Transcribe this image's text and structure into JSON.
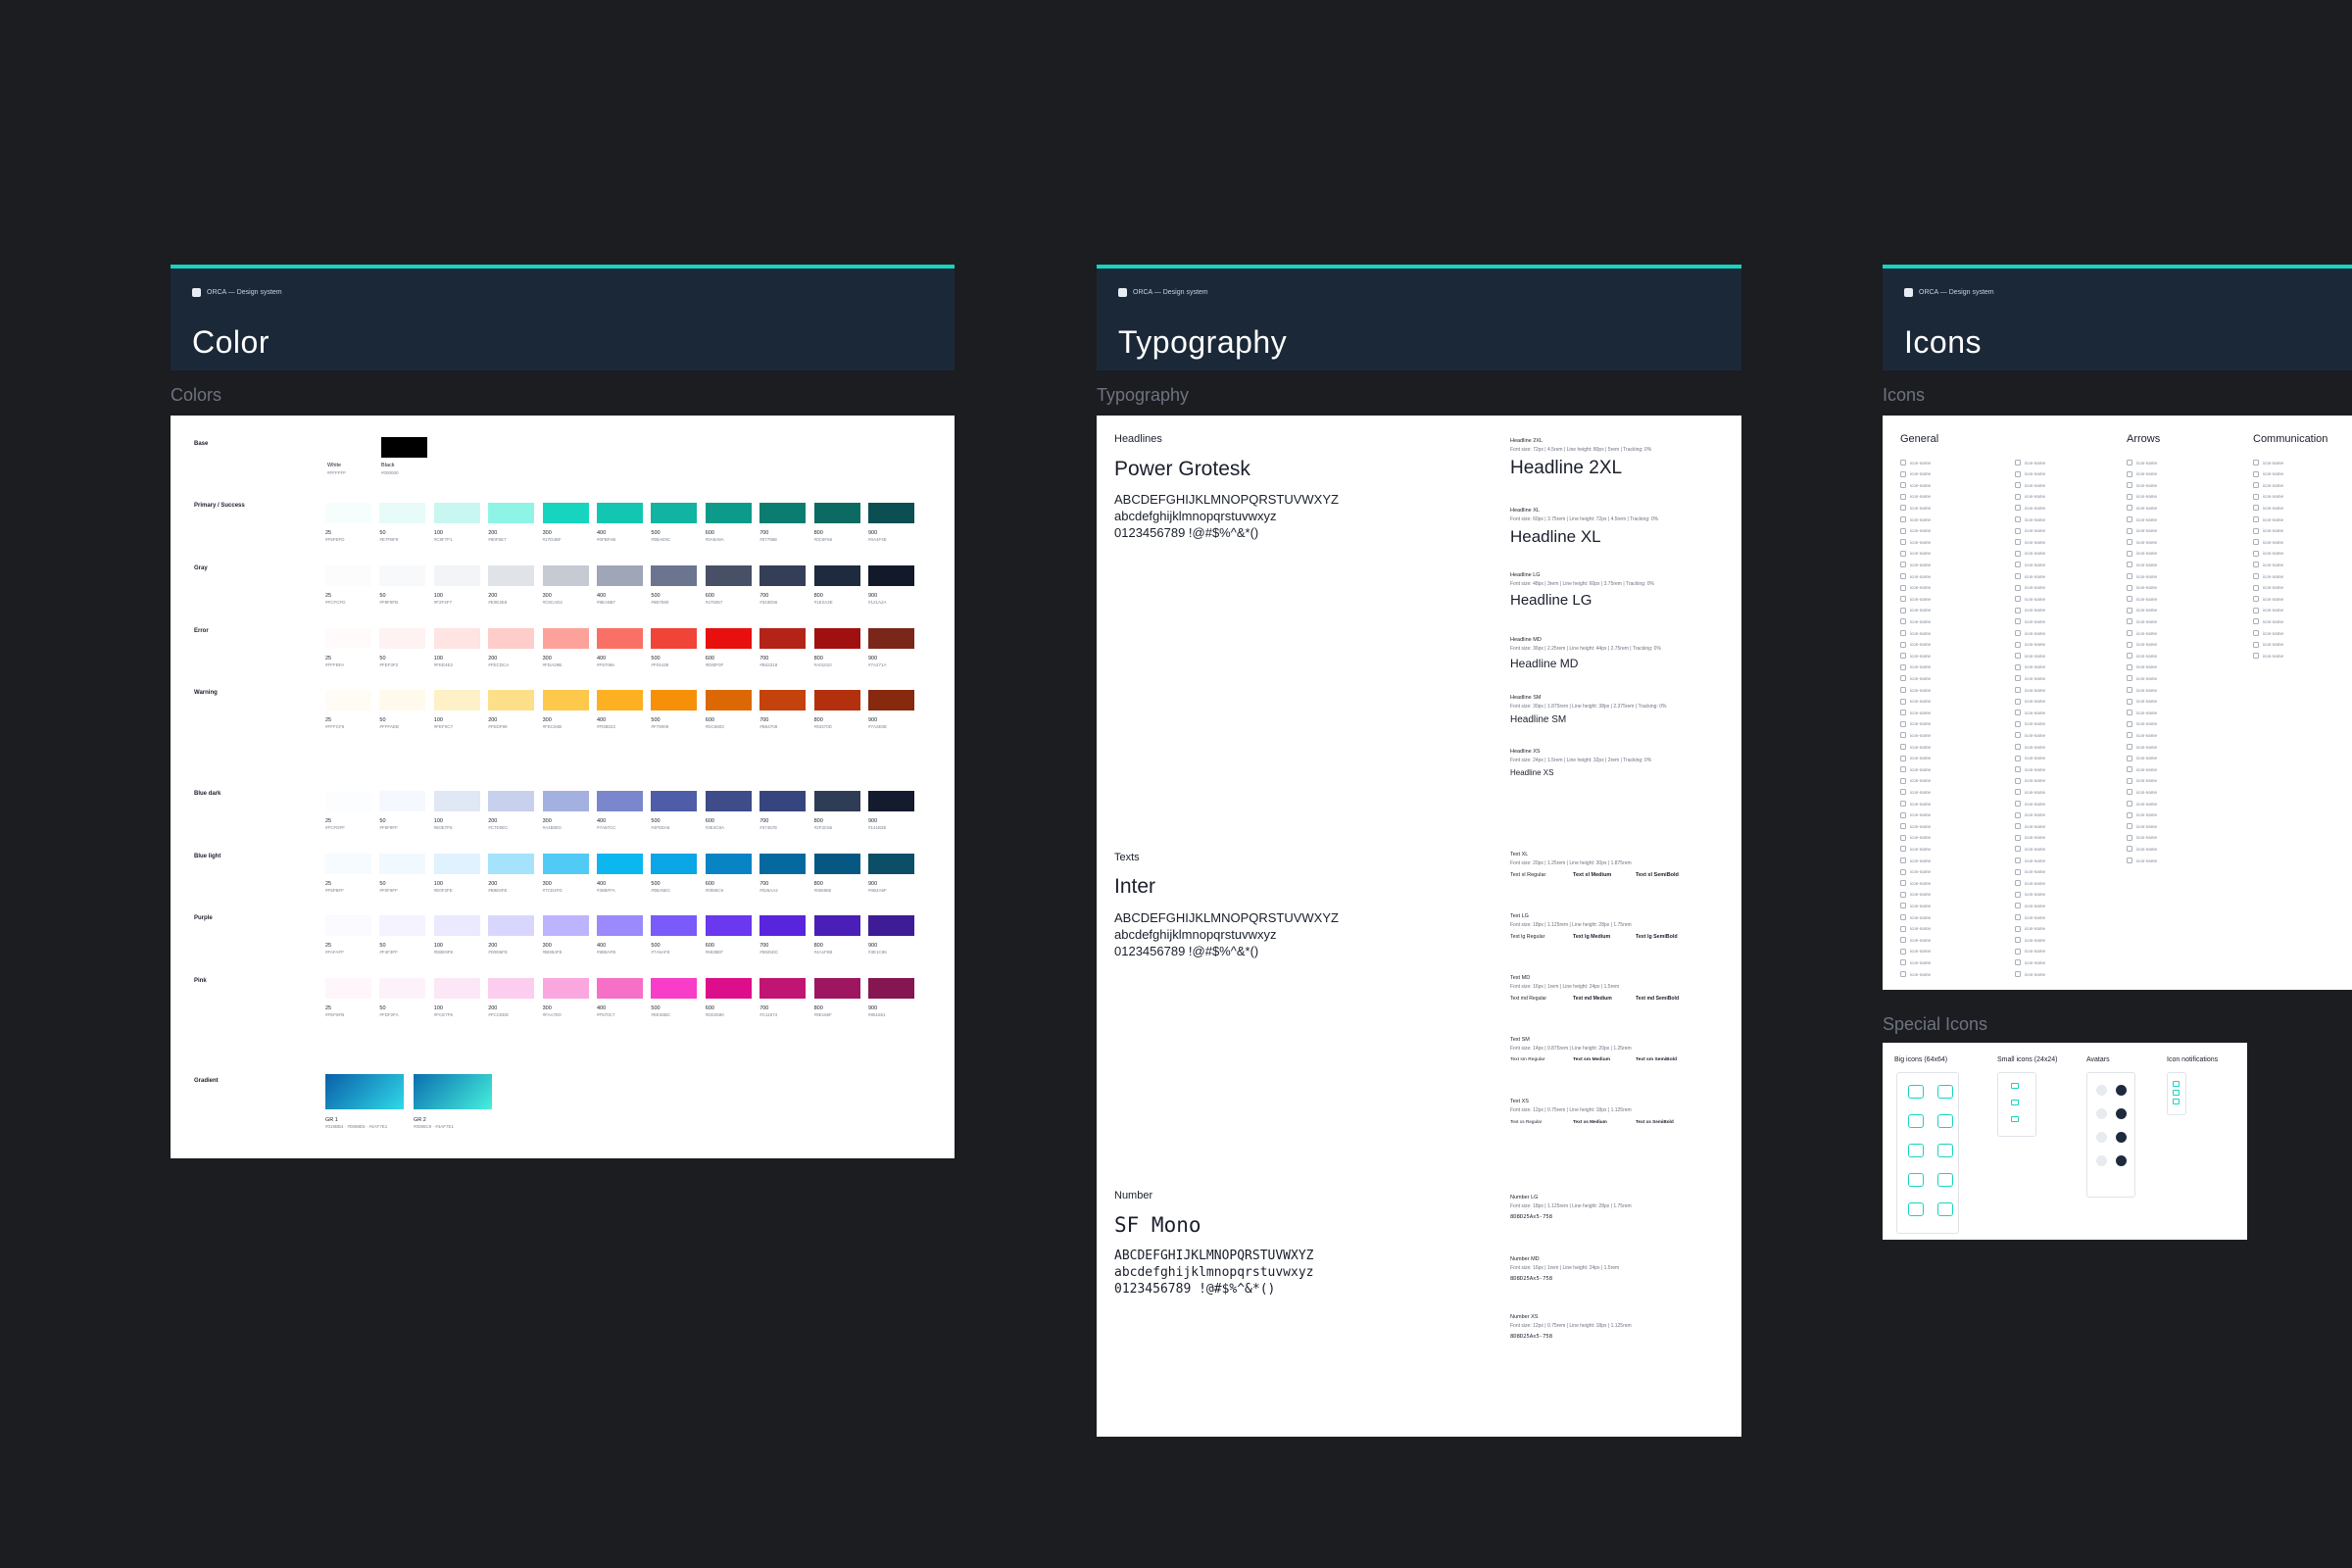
{
  "brand": "ORCA — Design system",
  "frames": {
    "color": {
      "title": "Color",
      "section_label": "Colors"
    },
    "typography": {
      "title": "Typography",
      "section_label": "Typography"
    },
    "icons": {
      "title": "Icons",
      "section_label": "Icons"
    },
    "special": {
      "section_label": "Special Icons"
    }
  },
  "base": {
    "name": "Base",
    "swatches": [
      {
        "label": "White",
        "hex": "#FFFFFF",
        "color": "#ffffff"
      },
      {
        "label": "Black",
        "hex": "#000000",
        "color": "#000000"
      }
    ]
  },
  "palettes": [
    {
      "name": "Primary / Success",
      "steps": [
        "25",
        "50",
        "100",
        "200",
        "300",
        "400",
        "500",
        "600",
        "700",
        "800",
        "900"
      ],
      "hexes": [
        "#F5FEFD",
        "#E7FBF9",
        "#C8F7F1",
        "#90F5E7",
        "#17D4BF",
        "#0FBFAB",
        "#0BAE9C",
        "#0A9A8A",
        "#07796E",
        "#0C6F66",
        "#0A4F4E"
      ],
      "colors": [
        "#f5fefd",
        "#e7fbf9",
        "#c8f7f1",
        "#8ef5e6",
        "#17d4bf",
        "#13c6b1",
        "#10b4a1",
        "#0c9b8a",
        "#0a7d70",
        "#0b6b63",
        "#0c4f52"
      ]
    },
    {
      "name": "Gray",
      "steps": [
        "25",
        "50",
        "100",
        "200",
        "300",
        "400",
        "500",
        "600",
        "700",
        "800",
        "900"
      ],
      "hexes": [
        "#FCFCFD",
        "#F8F9FB",
        "#F2F4F7",
        "#E0E3E8",
        "#C6CAD2",
        "#9EA6B7",
        "#6B7590",
        "#475067",
        "#343E56",
        "#1E2A3E",
        "#121A2A"
      ],
      "colors": [
        "#fcfcfd",
        "#f8f9fb",
        "#f2f4f7",
        "#e0e3e8",
        "#c6cad2",
        "#9ea6b7",
        "#6b7590",
        "#475067",
        "#343e56",
        "#1e2a3e",
        "#121a2a"
      ]
    },
    {
      "name": "Error",
      "steps": [
        "25",
        "50",
        "100",
        "200",
        "300",
        "400",
        "500",
        "600",
        "700",
        "800",
        "900"
      ],
      "hexes": [
        "#FFFBFA",
        "#FEF3F2",
        "#FEE4E2",
        "#FECDCA",
        "#FDA29B",
        "#F97066",
        "#F04438",
        "#E80F0F",
        "#B42318",
        "#A01010",
        "#7A271A"
      ],
      "colors": [
        "#fffbfa",
        "#fef3f2",
        "#fee4e2",
        "#fecdca",
        "#fda29b",
        "#f97066",
        "#f04438",
        "#e80f0f",
        "#b42318",
        "#a01010",
        "#7a271a"
      ]
    },
    {
      "name": "Warning",
      "steps": [
        "25",
        "50",
        "100",
        "200",
        "300",
        "400",
        "500",
        "600",
        "700",
        "800",
        "900"
      ],
      "hexes": [
        "#FFFCF5",
        "#FFFAEB",
        "#FEF0C7",
        "#FEDF89",
        "#FEC84B",
        "#FDB022",
        "#F79009",
        "#DC6803",
        "#B54708",
        "#93370D",
        "#7A2E0E"
      ],
      "colors": [
        "#fffcf5",
        "#fffaeb",
        "#fef0c7",
        "#fedf89",
        "#fec84b",
        "#fdb022",
        "#f79009",
        "#dc6803",
        "#c4420c",
        "#b3300e",
        "#86290f"
      ]
    },
    {
      "name": "Blue dark",
      "steps": [
        "25",
        "50",
        "100",
        "200",
        "300",
        "400",
        "500",
        "600",
        "700",
        "800",
        "900"
      ],
      "hexes": [
        "#FCFDFF",
        "#F5F8FF",
        "#E0E7F5",
        "#C7D0EC",
        "#A4B0E0",
        "#7A87CC",
        "#4F5DA8",
        "#3E4C8A",
        "#37457E",
        "#2F3C56",
        "#141B2E"
      ],
      "colors": [
        "#fcfdff",
        "#f5f8ff",
        "#e0e7f5",
        "#c7d0ec",
        "#a4b0e0",
        "#7a87cc",
        "#4f5da8",
        "#3e4c8a",
        "#37457e",
        "#2f3c56",
        "#141b2e"
      ]
    },
    {
      "name": "Blue light",
      "steps": [
        "25",
        "50",
        "100",
        "200",
        "300",
        "400",
        "500",
        "600",
        "700",
        "800",
        "900"
      ],
      "hexes": [
        "#F5FBFF",
        "#F0F9FF",
        "#E0F2FE",
        "#B9E6FE",
        "#7CD4FD",
        "#36BFFA",
        "#0BA5EC",
        "#0086C9",
        "#026AA2",
        "#065986",
        "#0B4A6F"
      ],
      "colors": [
        "#f5fbff",
        "#f0f9ff",
        "#e0f2fe",
        "#a5e2fc",
        "#51cbf6",
        "#0bb7ee",
        "#0aa6e5",
        "#0884c4",
        "#0569a0",
        "#065883",
        "#0b4e66"
      ]
    },
    {
      "name": "Purple",
      "steps": [
        "25",
        "50",
        "100",
        "200",
        "300",
        "400",
        "500",
        "600",
        "700",
        "800",
        "900"
      ],
      "hexes": [
        "#FAFAFF",
        "#F4F3FF",
        "#EBE9FE",
        "#D9D6FE",
        "#BDB4FE",
        "#9B8AFB",
        "#7A5AF8",
        "#6938EF",
        "#5925DC",
        "#4A1FB8",
        "#3E1C96"
      ],
      "colors": [
        "#fafaff",
        "#f4f3ff",
        "#ebe9fe",
        "#d9d6fe",
        "#bdb4fe",
        "#9b8afb",
        "#7a5af8",
        "#6938ef",
        "#5925dc",
        "#4a1fb8",
        "#3e1c96"
      ]
    },
    {
      "name": "Pink",
      "steps": [
        "25",
        "50",
        "100",
        "200",
        "300",
        "400",
        "500",
        "600",
        "700",
        "800",
        "900"
      ],
      "hexes": [
        "#FEF6FB",
        "#FDF2FA",
        "#FCE7F6",
        "#FCCEEE",
        "#FAA7E0",
        "#F670C7",
        "#EE46BC",
        "#DD2590",
        "#C11574",
        "#9E165F",
        "#851651"
      ],
      "colors": [
        "#fef6fb",
        "#fdf2fa",
        "#fce7f6",
        "#fccdee",
        "#faa7e0",
        "#f670c7",
        "#f83dc8",
        "#dd0e8c",
        "#c11574",
        "#9e165f",
        "#851651"
      ]
    }
  ],
  "gradient": {
    "name": "Gradient",
    "items": [
      {
        "label": "GR 1",
        "hexes": "#019BB4 · #0088E5 · #4AF7E1",
        "from": "#0a5fa8",
        "to": "#2fd9e8"
      },
      {
        "label": "GR 2",
        "hexes": "#0086C9 · #4AF7E1",
        "from": "#0a6fb0",
        "to": "#46f0dc"
      }
    ]
  },
  "typography": {
    "headlines_label": "Headlines",
    "headlines_font": "Power Grotesk",
    "texts_label": "Texts",
    "texts_font": "Inter",
    "number_label": "Number",
    "number_font": "SF Mono",
    "glyph_upper": "ABCDEFGHIJKLMNOPQRSTUVWXYZ",
    "glyph_lower": "abcdefghijklmnopqrstuvwxyz",
    "glyph_nums": "0123456789 !@#$%^&*()",
    "headline_specs": [
      {
        "name": "Headline 2XL",
        "meta": "Font size: 72px | 4.5rem | Line height: 80px | 5rem | Tracking: 0%",
        "sample": "Headline 2XL"
      },
      {
        "name": "Headline XL",
        "meta": "Font size: 60px | 3.75rem | Line height: 72px | 4.5rem | Tracking: 0%",
        "sample": "Headline XL"
      },
      {
        "name": "Headline LG",
        "meta": "Font size: 48px | 3rem | Line height: 60px | 3.75rem | Tracking: 0%",
        "sample": "Headline LG"
      },
      {
        "name": "Headline MD",
        "meta": "Font size: 36px | 2.25rem | Line height: 44px | 2.75rem | Tracking: 0%",
        "sample": "Headline MD"
      },
      {
        "name": "Headline SM",
        "meta": "Font size: 30px | 1.875rem | Line height: 38px | 2.375rem | Tracking: 0%",
        "sample": "Headline SM"
      },
      {
        "name": "Headline XS",
        "meta": "Font size: 24px | 1.5rem | Line height: 32px | 2rem | Tracking: 0%",
        "sample": "Headline XS"
      }
    ],
    "text_specs": [
      {
        "name": "Text XL",
        "meta": "Font size: 20px | 1.25rem | Line height: 30px | 1.875rem",
        "samples": [
          "Text xl Regular",
          "Text xl Medium",
          "Text xl SemiBold"
        ]
      },
      {
        "name": "Text LG",
        "meta": "Font size: 18px | 1.125rem | Line height: 28px | 1.75rem",
        "samples": [
          "Text lg Regular",
          "Text lg Medium",
          "Text lg SemiBold"
        ]
      },
      {
        "name": "Text MD",
        "meta": "Font size: 16px | 1rem | Line height: 24px | 1.5rem",
        "samples": [
          "Text md Regular",
          "Text md Medium",
          "Text md SemiBold"
        ]
      },
      {
        "name": "Text SM",
        "meta": "Font size: 14px | 0.875rem | Line height: 20px | 1.25rem",
        "samples": [
          "Text sm Regular",
          "Text sm Medium",
          "Text sm SemiBold"
        ]
      },
      {
        "name": "Text XS",
        "meta": "Font size: 12px | 0.75rem | Line height: 18px | 1.125rem",
        "samples": [
          "Text xs Regular",
          "Text xs Medium",
          "Text xs SemiBold"
        ]
      }
    ],
    "number_specs": [
      {
        "name": "Number LG",
        "meta": "Font size: 18px | 1.125rem | Line height: 28px | 1.75rem",
        "sample": "8D8D25Ax5-758"
      },
      {
        "name": "Number MD",
        "meta": "Font size: 16px | 1rem | Line height: 24px | 1.5rem",
        "sample": "8D8D25Ax5-758"
      },
      {
        "name": "Number XS",
        "meta": "Font size: 12px | 0.75rem | Line height: 18px | 1.125rem",
        "sample": "8D8D25Ax5-758"
      }
    ]
  },
  "icons": {
    "columns": [
      {
        "title": "General",
        "count": 46
      },
      {
        "title": "",
        "count": 46
      },
      {
        "title": "Arrows",
        "count": 36
      },
      {
        "title": "Communication",
        "count": 18
      }
    ],
    "item_label": "icon-name"
  },
  "special_icons": {
    "groups": [
      "Big icons (64x64)",
      "Small icons (24x24)",
      "Avatars",
      "Icon notifications"
    ],
    "big_icon_color": "#17d4bf",
    "avatar_dark": "#1e2a3e"
  }
}
